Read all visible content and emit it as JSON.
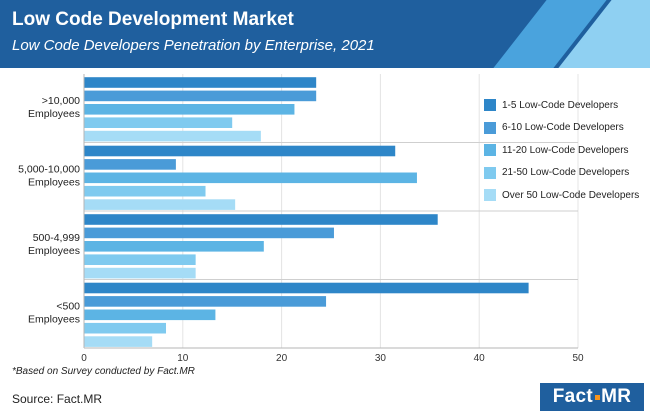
{
  "header": {
    "title": "Low Code Development Market",
    "subtitle": "Low Code Developers Penetration by Enterprise, 2021"
  },
  "footer": {
    "note": "*Based on Survey conducted by Fact.MR",
    "source": "Source: Fact.MR",
    "logo_left": "Fact",
    "logo_right": "MR"
  },
  "colors": {
    "header_bg": "#1f5f9e",
    "stripe_mid": "#4aa3dd",
    "stripe_light": "#8fd0f2",
    "logo_dot": "#f7941d"
  },
  "chart_data": {
    "type": "bar",
    "orientation": "horizontal",
    "categories": [
      [
        ">10,000",
        "Employees"
      ],
      [
        "5,000-10,000",
        "Employees"
      ],
      [
        "500-4,999",
        "Employees"
      ],
      [
        "<500",
        "Employees"
      ]
    ],
    "series": [
      {
        "name": "1-5 Low-Code Developers",
        "color": "#2e86c8",
        "values": [
          23.5,
          31.5,
          35.8,
          45.0
        ]
      },
      {
        "name": "6-10 Low-Code Developers",
        "color": "#4a9bd8",
        "values": [
          23.5,
          9.3,
          25.3,
          24.5
        ]
      },
      {
        "name": "11-20 Low-Code Developers",
        "color": "#5cb4e4",
        "values": [
          21.3,
          33.7,
          18.2,
          13.3
        ]
      },
      {
        "name": "21-50 Low-Code Developers",
        "color": "#7fcaef",
        "values": [
          15.0,
          12.3,
          11.3,
          8.3
        ]
      },
      {
        "name": "Over 50 Low-Code Developers",
        "color": "#a5dcf6",
        "values": [
          17.9,
          15.3,
          11.3,
          6.9
        ]
      }
    ],
    "xlim": [
      0,
      50
    ],
    "xticks": [
      0,
      10,
      20,
      30,
      40,
      50
    ],
    "xlabel": "",
    "ylabel": "",
    "grid": true,
    "legend_position": "right"
  }
}
